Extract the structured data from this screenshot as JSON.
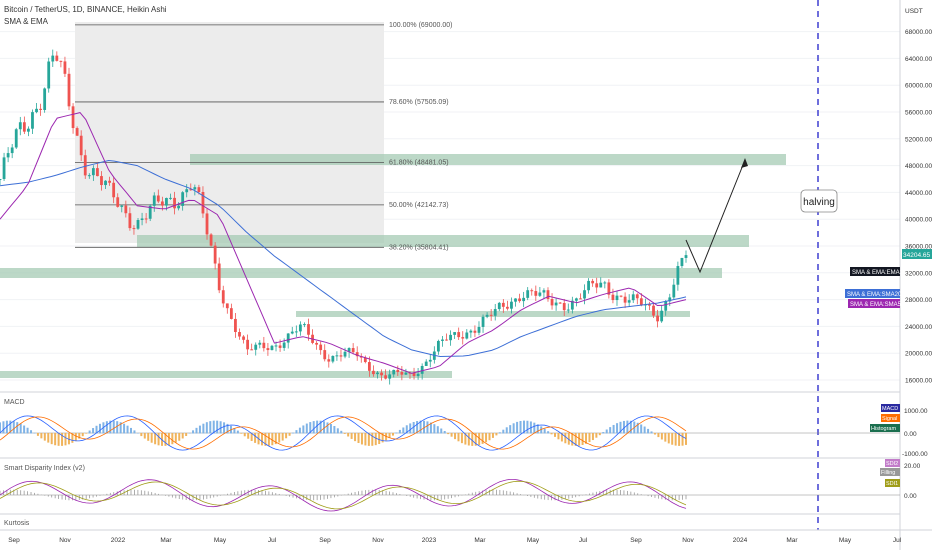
{
  "header": {
    "symbol_line": "Bitcoin / TetherUS, 1D, BINANCE, Heikin Ashi",
    "indicator": "SMA & EMA"
  },
  "price_axis": {
    "currency": "USDT",
    "ticks": [
      "68000.00",
      "64000.00",
      "60000.00",
      "56000.00",
      "52000.00",
      "48000.00",
      "44000.00",
      "40000.00",
      "36000.00",
      "32000.00",
      "28000.00",
      "24000.00",
      "20000.00",
      "16000.00"
    ]
  },
  "time_axis": [
    "Sep",
    "Nov",
    "2022",
    "Mar",
    "May",
    "Jul",
    "Sep",
    "Nov",
    "2023",
    "Mar",
    "May",
    "Jul",
    "Sep",
    "Nov",
    "2024",
    "Mar",
    "May",
    "Jul"
  ],
  "fib_levels": [
    {
      "label": "100.00% (69000.00)"
    },
    {
      "label": "78.60% (57505.09)"
    },
    {
      "label": "61.80% (48481.05)"
    },
    {
      "label": "50.00% (42142.73)"
    },
    {
      "label": "38.20% (35804.41)"
    }
  ],
  "annotations": {
    "halving": "halving"
  },
  "price_tags": {
    "last": "34204.65",
    "ema": "SMA & EMA:EMA1",
    "sma200": "SMA & EMA:SMA200",
    "sma50": "SMA & EMA:SMA50"
  },
  "macd_panel": {
    "title": "MACD",
    "ticks": [
      "1000.00",
      "0.00",
      "-1000.00"
    ],
    "tags": [
      "MACD",
      "Signal",
      "Histogram"
    ]
  },
  "sdi_panel": {
    "title": "Smart Disparity Index (v2)",
    "ticks": [
      "20.00",
      "0.00"
    ],
    "tags": [
      "SDI2",
      "Filling",
      "SDI1"
    ]
  },
  "kurtosis_panel": {
    "title": "Kurtosis"
  },
  "colors": {
    "up": "#26a69a",
    "down": "#ef5350",
    "fib_zone": "#e9e9e9",
    "zone_green": "#a5cbb4",
    "sma200": "#3d6fd6",
    "sma50": "#9c27b0",
    "macd": "#2962ff",
    "signal": "#ff6d00",
    "halving_line": "#3f3fd1"
  },
  "chart_data": {
    "type": "line",
    "title": "Bitcoin / TetherUS, 1D, BINANCE, Heikin Ashi",
    "x": [
      "2021-09",
      "2021-10",
      "2021-11",
      "2021-12",
      "2022-01",
      "2022-02",
      "2022-03",
      "2022-04",
      "2022-05",
      "2022-06",
      "2022-07",
      "2022-08",
      "2022-09",
      "2022-10",
      "2022-11",
      "2022-12",
      "2023-01",
      "2023-02",
      "2023-03",
      "2023-04",
      "2023-05",
      "2023-06",
      "2023-07",
      "2023-08",
      "2023-09",
      "2023-10"
    ],
    "series": [
      {
        "name": "",
        "values": [
          46000,
          55000,
          64000,
          50000,
          43000,
          40000,
          42000,
          46000,
          30000,
          20000,
          21500,
          23500,
          19500,
          19700,
          16500,
          16800,
          21000,
          23500,
          25500,
          29500,
          27500,
          28000,
          30500,
          27500,
          26000,
          34204
        ]
      },
      {
        "name": "SMA & EMA:SMA200",
        "values": [
          45000,
          45500,
          46500,
          47800,
          48800,
          48000,
          46000,
          44500,
          42000,
          38000,
          34500,
          31500,
          28500,
          25500,
          22500,
          20500,
          19500,
          19600,
          20500,
          22500,
          24000,
          25500,
          26500,
          27000,
          27500,
          28400
        ]
      },
      {
        "name": "SMA & EMA:SMA50",
        "values": [
          40000,
          45000,
          55000,
          56000,
          47000,
          42000,
          41500,
          43000,
          40500,
          31000,
          21500,
          22500,
          21500,
          19700,
          18500,
          17000,
          18000,
          21500,
          23500,
          26500,
          28500,
          27500,
          28800,
          29800,
          27000,
          28000
        ]
      }
    ],
    "ylim": [
      14000,
      70000
    ],
    "fib_ratios": [
      1.0,
      0.786,
      0.618,
      0.5,
      0.382
    ],
    "fib_prices": [
      69000.0,
      57505.09,
      48481.05,
      42142.73,
      35804.41
    ],
    "grid": true,
    "legend": "right"
  }
}
